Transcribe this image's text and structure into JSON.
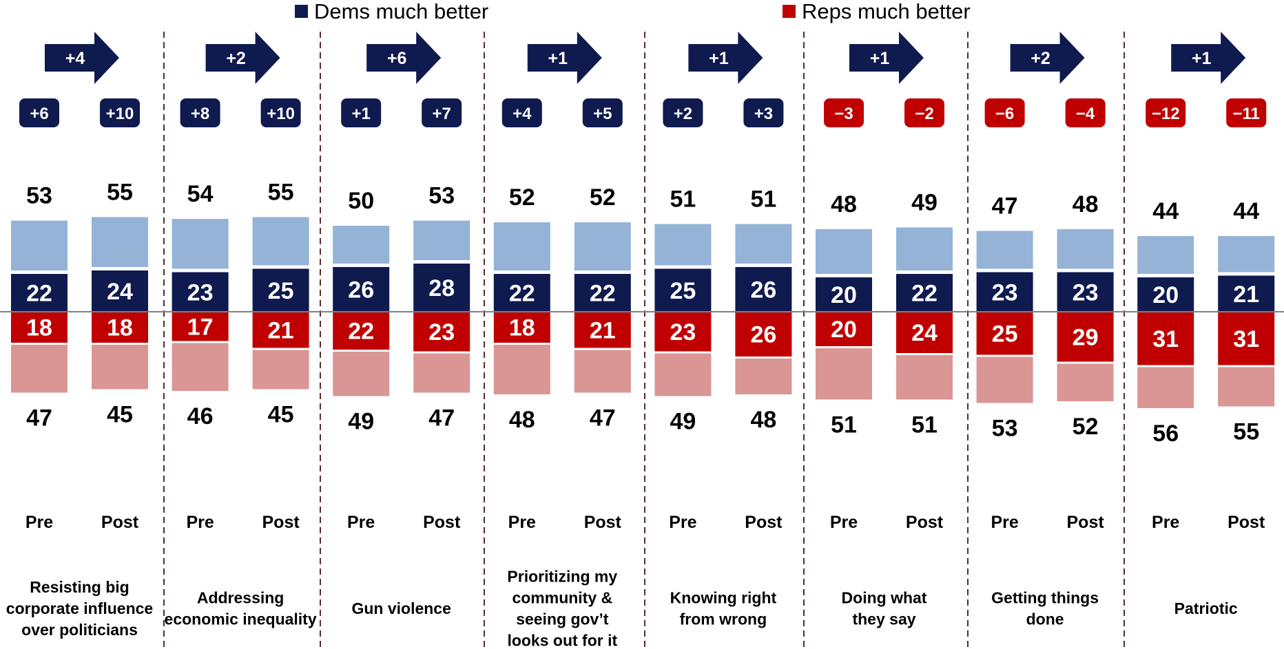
{
  "legend": {
    "dems_label": "Dems much better",
    "reps_label": "Reps much better"
  },
  "chart_data": {
    "type": "bar",
    "subtype": "diverging-stacked",
    "periods": [
      "Pre",
      "Post"
    ],
    "colors": {
      "dem_total": "#95b3d7",
      "dem_much": "#0f1a4f",
      "rep_much": "#c00000",
      "rep_total": "#da9694",
      "dem_badge": "#0f1a4f",
      "rep_badge": "#c00000",
      "arrow": "#0f1a4f",
      "text": "#000000"
    },
    "legend_position": "top",
    "grid": false,
    "groups": [
      {
        "category": "Resisting big corporate influence over politicians",
        "label_lines": [
          "Resisting big",
          "corporate influence",
          "over politicians"
        ],
        "change": "+4",
        "pre": {
          "dem_total": 53,
          "dem_much": 22,
          "rep_much": 18,
          "rep_total": 47,
          "net": "+6"
        },
        "post": {
          "dem_total": 55,
          "dem_much": 24,
          "rep_much": 18,
          "rep_total": 45,
          "net": "+10"
        }
      },
      {
        "category": "Addressing economic inequality",
        "label_lines": [
          "Addressing",
          "economic inequality"
        ],
        "change": "+2",
        "pre": {
          "dem_total": 54,
          "dem_much": 23,
          "rep_much": 17,
          "rep_total": 46,
          "net": "+8"
        },
        "post": {
          "dem_total": 55,
          "dem_much": 25,
          "rep_much": 21,
          "rep_total": 45,
          "net": "+10"
        }
      },
      {
        "category": "Gun violence",
        "label_lines": [
          "Gun violence"
        ],
        "change": "+6",
        "pre": {
          "dem_total": 50,
          "dem_much": 26,
          "rep_much": 22,
          "rep_total": 49,
          "net": "+1"
        },
        "post": {
          "dem_total": 53,
          "dem_much": 28,
          "rep_much": 23,
          "rep_total": 47,
          "net": "+7"
        }
      },
      {
        "category": "Prioritizing my community & seeing gov’t looks out for it",
        "label_lines": [
          "Prioritizing my",
          "community &",
          "seeing gov’t",
          "looks out for it"
        ],
        "change": "+1",
        "pre": {
          "dem_total": 52,
          "dem_much": 22,
          "rep_much": 18,
          "rep_total": 48,
          "net": "+4"
        },
        "post": {
          "dem_total": 52,
          "dem_much": 22,
          "rep_much": 21,
          "rep_total": 47,
          "net": "+5"
        }
      },
      {
        "category": "Knowing right from wrong",
        "label_lines": [
          "Knowing right",
          "from wrong"
        ],
        "change": "+1",
        "pre": {
          "dem_total": 51,
          "dem_much": 25,
          "rep_much": 23,
          "rep_total": 49,
          "net": "+2"
        },
        "post": {
          "dem_total": 51,
          "dem_much": 26,
          "rep_much": 26,
          "rep_total": 48,
          "net": "+3"
        }
      },
      {
        "category": "Doing what they say",
        "label_lines": [
          "Doing what",
          "they say"
        ],
        "change": "+1",
        "pre": {
          "dem_total": 48,
          "dem_much": 20,
          "rep_much": 20,
          "rep_total": 51,
          "net": "-3"
        },
        "post": {
          "dem_total": 49,
          "dem_much": 22,
          "rep_much": 24,
          "rep_total": 51,
          "net": "-2"
        }
      },
      {
        "category": "Getting things done",
        "label_lines": [
          "Getting things",
          "done"
        ],
        "change": "+2",
        "pre": {
          "dem_total": 47,
          "dem_much": 23,
          "rep_much": 25,
          "rep_total": 53,
          "net": "-6"
        },
        "post": {
          "dem_total": 48,
          "dem_much": 23,
          "rep_much": 29,
          "rep_total": 52,
          "net": "-4"
        }
      },
      {
        "category": "Patriotic",
        "label_lines": [
          "Patriotic"
        ],
        "change": "+1",
        "pre": {
          "dem_total": 44,
          "dem_much": 20,
          "rep_much": 31,
          "rep_total": 56,
          "net": "-12"
        },
        "post": {
          "dem_total": 44,
          "dem_much": 21,
          "rep_much": 31,
          "rep_total": 55,
          "net": "-11"
        }
      }
    ]
  }
}
